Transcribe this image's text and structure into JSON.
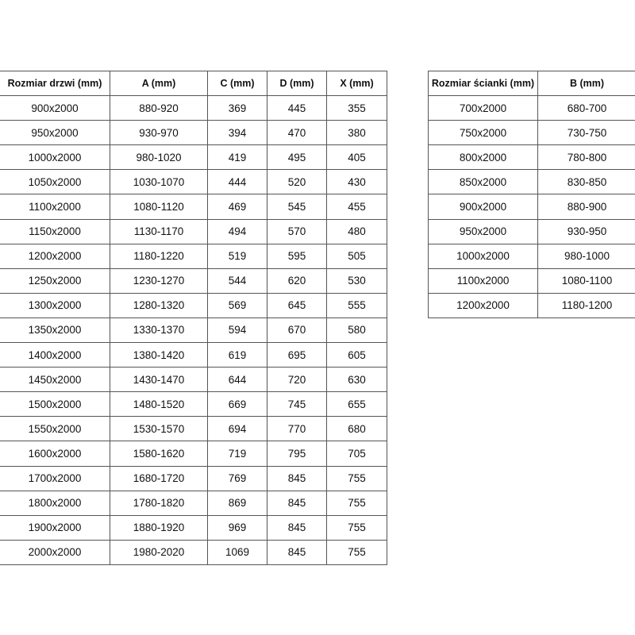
{
  "door_table": {
    "headers": [
      "Rozmiar drzwi (mm)",
      "A (mm)",
      "C (mm)",
      "D (mm)",
      "X (mm)"
    ],
    "rows": [
      [
        "900x2000",
        "880-920",
        "369",
        "445",
        "355"
      ],
      [
        "950x2000",
        "930-970",
        "394",
        "470",
        "380"
      ],
      [
        "1000x2000",
        "980-1020",
        "419",
        "495",
        "405"
      ],
      [
        "1050x2000",
        "1030-1070",
        "444",
        "520",
        "430"
      ],
      [
        "1100x2000",
        "1080-1120",
        "469",
        "545",
        "455"
      ],
      [
        "1150x2000",
        "1130-1170",
        "494",
        "570",
        "480"
      ],
      [
        "1200x2000",
        "1180-1220",
        "519",
        "595",
        "505"
      ],
      [
        "1250x2000",
        "1230-1270",
        "544",
        "620",
        "530"
      ],
      [
        "1300x2000",
        "1280-1320",
        "569",
        "645",
        "555"
      ],
      [
        "1350x2000",
        "1330-1370",
        "594",
        "670",
        "580"
      ],
      [
        "1400x2000",
        "1380-1420",
        "619",
        "695",
        "605"
      ],
      [
        "1450x2000",
        "1430-1470",
        "644",
        "720",
        "630"
      ],
      [
        "1500x2000",
        "1480-1520",
        "669",
        "745",
        "655"
      ],
      [
        "1550x2000",
        "1530-1570",
        "694",
        "770",
        "680"
      ],
      [
        "1600x2000",
        "1580-1620",
        "719",
        "795",
        "705"
      ],
      [
        "1700x2000",
        "1680-1720",
        "769",
        "845",
        "755"
      ],
      [
        "1800x2000",
        "1780-1820",
        "869",
        "845",
        "755"
      ],
      [
        "1900x2000",
        "1880-1920",
        "969",
        "845",
        "755"
      ],
      [
        "2000x2000",
        "1980-2020",
        "1069",
        "845",
        "755"
      ]
    ]
  },
  "wall_table": {
    "headers": [
      "Rozmiar ścianki (mm)",
      "B (mm)"
    ],
    "rows": [
      [
        "700x2000",
        "680-700"
      ],
      [
        "750x2000",
        "730-750"
      ],
      [
        "800x2000",
        "780-800"
      ],
      [
        "850x2000",
        "830-850"
      ],
      [
        "900x2000",
        "880-900"
      ],
      [
        "950x2000",
        "930-950"
      ],
      [
        "1000x2000",
        "980-1000"
      ],
      [
        "1100x2000",
        "1080-1100"
      ],
      [
        "1200x2000",
        "1180-1200"
      ]
    ]
  }
}
